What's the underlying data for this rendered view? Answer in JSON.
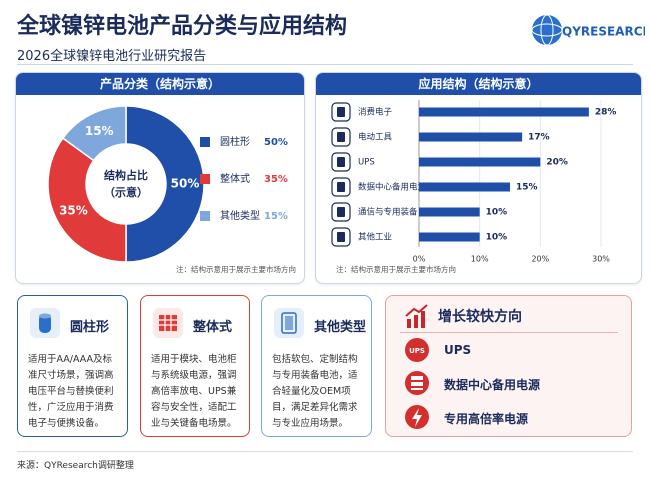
{
  "header": {
    "title": "全球镍锌电池产品分类与应用结构",
    "subtitle": "2026全球镍锌电池行业研究报告",
    "logo": "QYRESEARCH"
  },
  "chart_data": [
    {
      "type": "donut",
      "title": "产品分类（结构示意）",
      "center_label": [
        "结构占比",
        "（示意）"
      ],
      "categories": [
        "圆柱形",
        "整体式",
        "其他类型"
      ],
      "values": [
        50,
        35,
        15
      ],
      "value_labels": [
        "50%",
        "35%",
        "15%"
      ],
      "colors": [
        "#1f4fa8",
        "#e03a3a",
        "#7ea7dc"
      ],
      "note": "注：结构示意用于展示主要市场方向"
    },
    {
      "type": "hbar",
      "title": "应用结构（结构示意）",
      "categories": [
        "消费电子",
        "电动工具",
        "UPS",
        "数据中心备用电源",
        "通信与专用装备",
        "其他工业"
      ],
      "values": [
        28,
        17,
        20,
        15,
        10,
        10
      ],
      "value_labels": [
        "28%",
        "17%",
        "20%",
        "15%",
        "10%",
        "10%"
      ],
      "color": "#1f4fa8",
      "xlim": [
        0,
        30
      ],
      "xticks": [
        {
          "value": 0,
          "label": "0%"
        },
        {
          "value": 10,
          "label": "10%"
        },
        {
          "value": 20,
          "label": "20%"
        },
        {
          "value": 30,
          "label": "30%"
        }
      ],
      "grid": true,
      "note": "注：结构示意用于展示主要市场方向"
    }
  ],
  "cards": [
    {
      "title": "圆柱形",
      "text": "适用于AA/AAA及标准尺寸场景，强调高电压平台与替换便利性，广泛应用于消费电子与便携设备。"
    },
    {
      "title": "整体式",
      "text": "适用于模块、电池柜与系统级电源，强调高倍率放电、UPS兼容与安全性，适配工业与关键备电场景。"
    },
    {
      "title": "其他类型",
      "text": "包括软包、定制结构与专用装备电池，适合轻量化及OEM项目，满足差异化需求与专业应用场景。"
    }
  ],
  "growth": {
    "title": "增长较快方向",
    "items": [
      "UPS",
      "数据中心备用电源",
      "专用高倍率电源"
    ]
  },
  "footer": "来源：QYResearch调研整理"
}
